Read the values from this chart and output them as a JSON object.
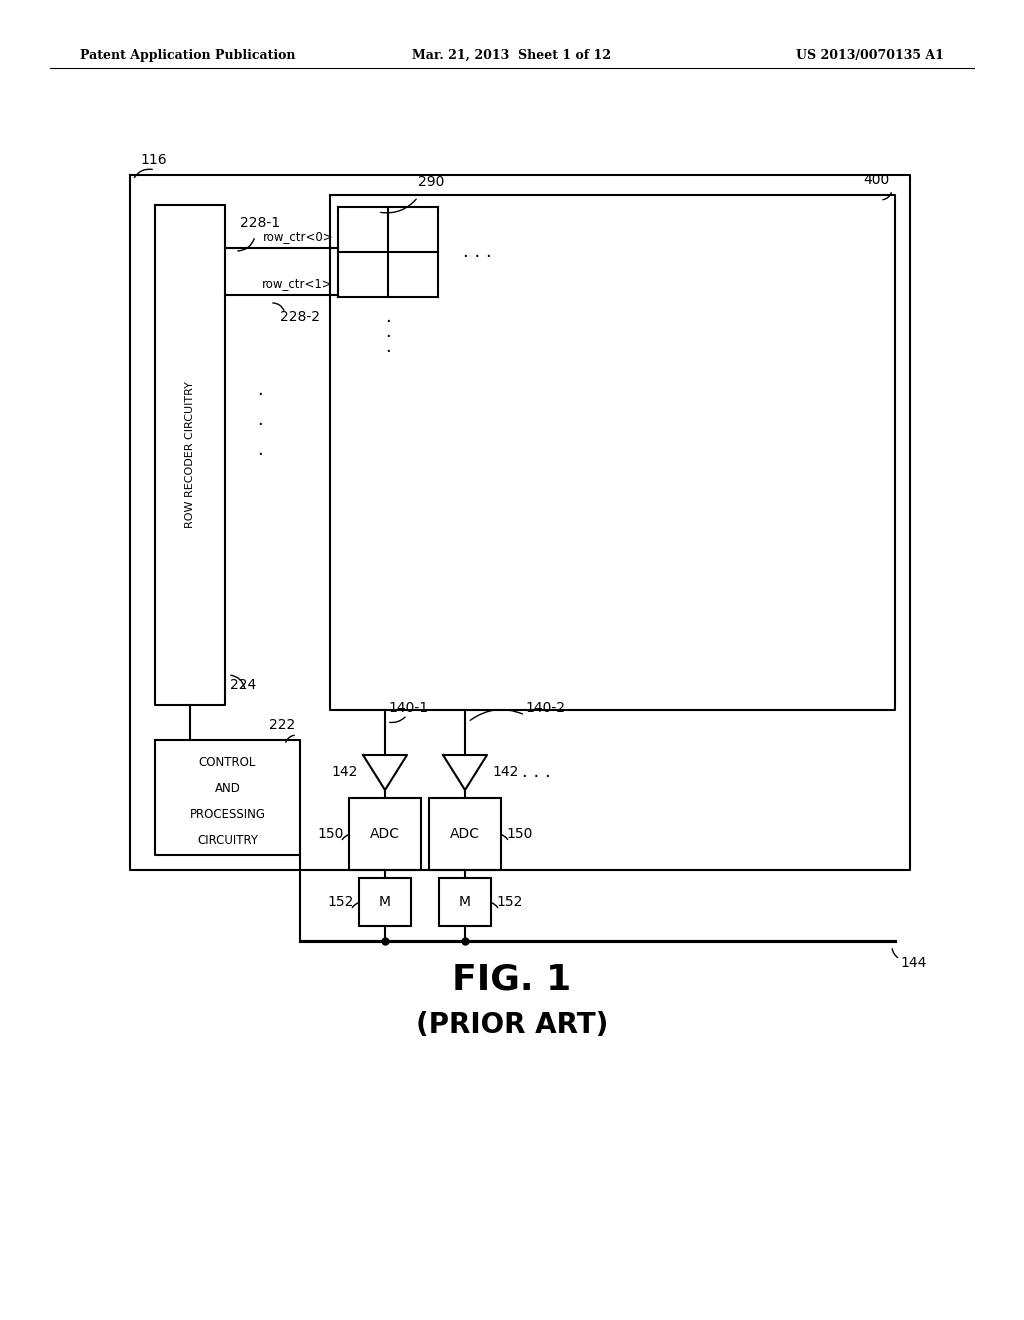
{
  "bg_color": "#ffffff",
  "line_color": "#000000",
  "header_left": "Patent Application Publication",
  "header_mid": "Mar. 21, 2013  Sheet 1 of 12",
  "header_right": "US 2013/0070135 A1",
  "fig_label": "FIG. 1",
  "fig_sublabel": "(PRIOR ART)",
  "label_116": "116",
  "label_400": "400",
  "label_290": "290",
  "label_224": "224",
  "label_222": "222",
  "label_228_1": "228-1",
  "label_228_2": "228-2",
  "label_140_1": "140-1",
  "label_140_2": "140-2",
  "label_142a": "142",
  "label_142b": "142",
  "label_150a": "150",
  "label_150b": "150",
  "label_152a": "152",
  "label_152b": "152",
  "label_144": "144",
  "adc_text": "ADC",
  "mem_text": "M",
  "row_ctr0": "row_ctr<0>",
  "row_ctr1": "row_ctr<1>"
}
